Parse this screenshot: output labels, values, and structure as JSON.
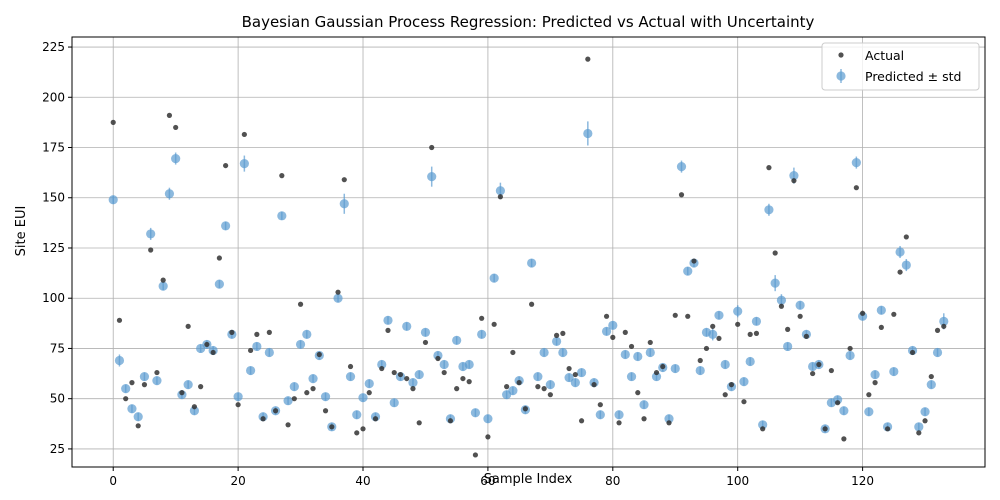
{
  "chart_data": {
    "type": "scatter",
    "title": "Bayesian Gaussian Process Regression: Predicted vs Actual with Uncertainty",
    "xlabel": "Sample Index",
    "ylabel": "Site EUI",
    "xlim": [
      -6.6,
      139.6
    ],
    "ylim": [
      16,
      230
    ],
    "xticks": [
      0,
      20,
      40,
      60,
      80,
      100,
      120
    ],
    "yticks": [
      25,
      50,
      75,
      100,
      125,
      150,
      175,
      200,
      225
    ],
    "grid": true,
    "legend_position": "top-right",
    "legend": [
      "Actual",
      "Predicted ± std"
    ],
    "colors": {
      "actual": "#333333",
      "predicted": "#5b9bd0"
    },
    "series": [
      {
        "name": "Actual",
        "x": [
          0,
          1,
          2,
          3,
          4,
          5,
          6,
          7,
          8,
          9,
          10,
          11,
          12,
          13,
          14,
          15,
          16,
          17,
          18,
          19,
          20,
          21,
          22,
          23,
          24,
          25,
          26,
          27,
          28,
          29,
          30,
          31,
          32,
          33,
          34,
          35,
          36,
          37,
          38,
          39,
          40,
          41,
          42,
          43,
          44,
          45,
          46,
          47,
          48,
          49,
          50,
          51,
          52,
          53,
          54,
          55,
          56,
          57,
          58,
          59,
          60,
          61,
          62,
          63,
          64,
          65,
          66,
          67,
          68,
          69,
          70,
          71,
          72,
          73,
          74,
          75,
          76,
          77,
          78,
          79,
          80,
          81,
          82,
          83,
          84,
          85,
          86,
          87,
          88,
          89,
          90,
          91,
          92,
          93,
          94,
          95,
          96,
          97,
          98,
          99,
          100,
          101,
          102,
          103,
          104,
          105,
          106,
          107,
          108,
          109,
          110,
          111,
          112,
          113,
          114,
          115,
          116,
          117,
          118,
          119,
          120,
          121,
          122,
          123,
          124,
          125,
          126,
          127,
          128,
          129,
          130,
          131,
          132,
          133
        ],
        "values": [
          187.5,
          89,
          50,
          58,
          36.5,
          57,
          124,
          63,
          109,
          191,
          185,
          53,
          86,
          46,
          56,
          77,
          73,
          120,
          166,
          83,
          47,
          181.5,
          74,
          82,
          40,
          83,
          44,
          161,
          37,
          50,
          97,
          53,
          55,
          72,
          44,
          36,
          103,
          159,
          66,
          33,
          35,
          53,
          40,
          65,
          84,
          63,
          62,
          60,
          55,
          38,
          78,
          175,
          70,
          63,
          39,
          55,
          60,
          58.5,
          22,
          90,
          31,
          87,
          150.5,
          56,
          73,
          58,
          45,
          97,
          56,
          55,
          52,
          81.5,
          82.5,
          65,
          62,
          39,
          219,
          57,
          47,
          91,
          80.5,
          38,
          83,
          76,
          53,
          40,
          78,
          63,
          66,
          38,
          91.5,
          151.5,
          91,
          118.5,
          69,
          75,
          86,
          80,
          52,
          57,
          87,
          48.5,
          82,
          82.5,
          35,
          165,
          122.5,
          96,
          84.5,
          158.5,
          91,
          81,
          62.5,
          67,
          35,
          64,
          48,
          30,
          75,
          155,
          92.5,
          52,
          58,
          85.5,
          35,
          92,
          113,
          130.5,
          73,
          33,
          39,
          61,
          84,
          86
        ]
      },
      {
        "name": "Predicted ± std",
        "x": [
          0,
          1,
          2,
          3,
          4,
          5,
          6,
          7,
          8,
          9,
          10,
          11,
          12,
          13,
          14,
          15,
          16,
          17,
          18,
          19,
          20,
          21,
          22,
          23,
          24,
          25,
          26,
          27,
          28,
          29,
          30,
          31,
          32,
          33,
          34,
          35,
          36,
          37,
          38,
          39,
          40,
          41,
          42,
          43,
          44,
          45,
          46,
          47,
          48,
          49,
          50,
          51,
          52,
          53,
          54,
          55,
          56,
          57,
          58,
          59,
          60,
          61,
          62,
          63,
          64,
          65,
          66,
          67,
          68,
          69,
          70,
          71,
          72,
          73,
          74,
          75,
          76,
          77,
          78,
          79,
          80,
          81,
          82,
          83,
          84,
          85,
          86,
          87,
          88,
          89,
          90,
          91,
          92,
          93,
          94,
          95,
          96,
          97,
          98,
          99,
          100,
          101,
          102,
          103,
          104,
          105,
          106,
          107,
          108,
          109,
          110,
          111,
          112,
          113,
          114,
          115,
          116,
          117,
          118,
          119,
          120,
          121,
          122,
          123,
          124,
          125,
          126,
          127,
          128,
          129,
          130,
          131,
          132,
          133
        ],
        "values": [
          149,
          69,
          55,
          45,
          41,
          61,
          132,
          59,
          106,
          152,
          169.5,
          52,
          57,
          44,
          75,
          77,
          74,
          107,
          136,
          82,
          51,
          167,
          64,
          76,
          41,
          73,
          44,
          141,
          49,
          56,
          77,
          82,
          60,
          71.5,
          51,
          36,
          100,
          147,
          61,
          42,
          50.5,
          57.5,
          41,
          67,
          89,
          48,
          61,
          86,
          58,
          62,
          83,
          160.5,
          71.5,
          67,
          40,
          79,
          66,
          67,
          43,
          82,
          40,
          110,
          153.5,
          52,
          54,
          59,
          44.5,
          117.5,
          61,
          73,
          57,
          78.5,
          73,
          60.5,
          58,
          63,
          182,
          58,
          42,
          83.5,
          86.5,
          42,
          72,
          61,
          71,
          47,
          73,
          61,
          65.5,
          40,
          65,
          165.5,
          113.5,
          117.5,
          64,
          83,
          82,
          91.5,
          67,
          56,
          93.5,
          58.5,
          68.5,
          88.5,
          37,
          144,
          107.5,
          99,
          76,
          161,
          96.5,
          82,
          66,
          67,
          35,
          48,
          49.5,
          44,
          71.5,
          167.5,
          91,
          43.5,
          62,
          94,
          36,
          63.5,
          123,
          116.5,
          74,
          36,
          43.5,
          57,
          73,
          88.5
        ],
        "std": [
          2,
          3,
          2,
          2,
          2,
          2,
          3,
          2,
          2,
          3,
          3,
          2,
          2,
          2,
          2,
          2,
          2,
          2,
          2,
          2,
          2,
          4,
          2,
          2,
          2,
          2,
          2,
          2,
          2,
          2,
          2,
          2,
          2,
          2,
          2,
          2,
          2,
          5,
          2,
          2,
          2,
          2,
          2,
          2,
          2,
          2,
          2,
          2,
          2,
          2,
          2,
          5,
          2,
          2,
          2,
          2,
          2,
          2,
          2,
          2,
          2,
          2,
          4,
          2,
          2,
          2,
          2,
          2,
          2,
          2,
          2,
          2,
          2,
          2,
          2,
          2,
          6,
          2,
          2,
          2,
          2,
          2,
          2,
          2,
          2,
          2,
          2,
          2,
          2,
          2,
          2,
          3,
          2,
          2,
          2,
          2,
          3,
          2,
          2,
          2,
          3,
          2,
          2,
          2,
          2,
          3,
          4,
          3,
          2,
          4,
          2,
          2,
          2,
          2,
          2,
          2,
          2,
          2,
          2,
          3,
          2,
          2,
          2,
          2,
          2,
          2,
          3,
          3,
          2,
          2,
          2,
          2,
          2,
          4
        ]
      }
    ]
  }
}
